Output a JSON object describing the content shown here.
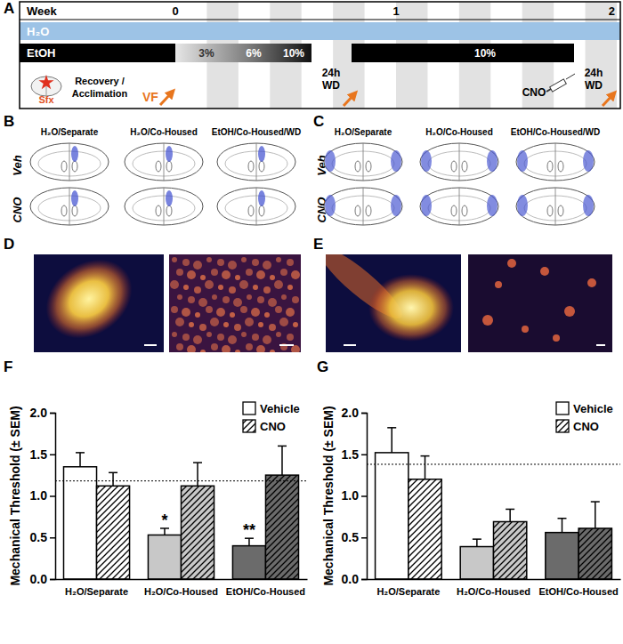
{
  "panel_labels": [
    "A",
    "B",
    "C",
    "D",
    "E",
    "F",
    "G"
  ],
  "timeline": {
    "header": "Week",
    "weeks": [
      "0",
      "1",
      "2"
    ],
    "water": "H₂O",
    "ethanol": "EtOH",
    "concentrations": [
      "3%",
      "6%",
      "10%",
      "10%"
    ],
    "withdrawal": [
      "24h",
      "WD"
    ],
    "surgery": "Sfx",
    "recovery": [
      "Recovery /",
      "Acclimation"
    ],
    "test": "VF",
    "injection": "CNO"
  },
  "sections": {
    "groups": [
      "H₂O/Separate",
      "H₂O/Co-Housed",
      "EtOH/Co-Housed/WD"
    ],
    "treatments": [
      "Veh",
      "CNO"
    ]
  },
  "chart_data": [
    {
      "type": "bar",
      "categories": [
        "H₂O/Separate",
        "H₂O/Co-Housed",
        "EtOH/Co-Housed"
      ],
      "series": [
        {
          "name": "Vehicle",
          "colors": [
            "#ffffff",
            "#c8c8c8",
            "#6b6b6b"
          ],
          "values": [
            1.35,
            0.53,
            0.4
          ],
          "errors": [
            0.17,
            0.08,
            0.09
          ]
        },
        {
          "name": "CNO",
          "colors": [
            "#ffffff",
            "#c8c8c8",
            "#6b6b6b"
          ],
          "values": [
            1.12,
            1.12,
            1.25
          ],
          "errors": [
            0.16,
            0.28,
            0.35
          ]
        }
      ],
      "ylabel": "Mechanical Threshold (± SEM)",
      "ylim": [
        0,
        2
      ],
      "yticks": [
        {
          "value": 0,
          "label": "0.0"
        },
        0.5,
        {
          "value": 1,
          "label": "1.0"
        },
        1.5,
        {
          "value": 2,
          "label": "2.0"
        }
      ],
      "reference_line": 1.18,
      "annotations": [
        {
          "text": "*",
          "category": "H₂O/Co-Housed",
          "series": "Vehicle"
        },
        {
          "text": "**",
          "category": "EtOH/Co-Housed",
          "series": "Vehicle"
        }
      ],
      "legend": "upper right"
    },
    {
      "type": "bar",
      "categories": [
        "H₂O/Separate",
        "H₂O/Co-Housed",
        "EtOH/Co-Housed"
      ],
      "series": [
        {
          "name": "Vehicle",
          "colors": [
            "#ffffff",
            "#c8c8c8",
            "#6b6b6b"
          ],
          "values": [
            1.52,
            0.39,
            0.56
          ],
          "errors": [
            0.3,
            0.09,
            0.17
          ]
        },
        {
          "name": "CNO",
          "colors": [
            "#ffffff",
            "#c8c8c8",
            "#6b6b6b"
          ],
          "values": [
            1.2,
            0.69,
            0.61
          ],
          "errors": [
            0.28,
            0.15,
            0.32
          ]
        }
      ],
      "ylabel": "Mechanical Threshold (± SEM)",
      "ylim": [
        0,
        2
      ],
      "yticks": [
        {
          "value": 0,
          "label": "0.0"
        },
        0.5,
        {
          "value": 1,
          "label": "1.0"
        },
        1.5,
        {
          "value": 2,
          "label": "2.0"
        }
      ],
      "reference_line": 1.38,
      "legend": "upper right"
    }
  ]
}
